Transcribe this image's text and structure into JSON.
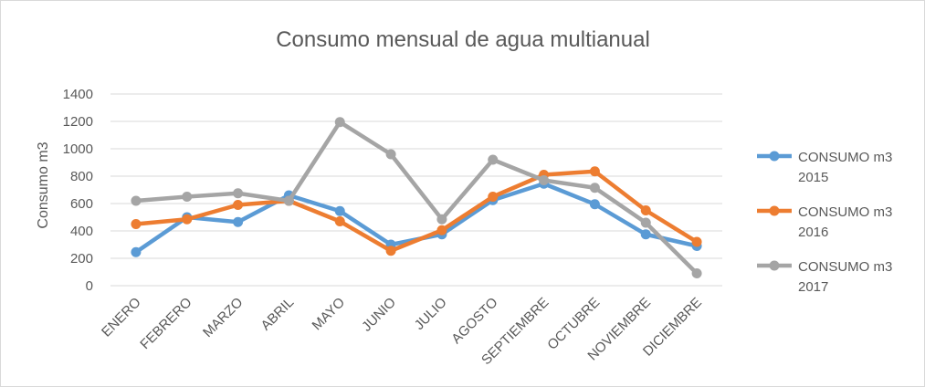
{
  "chart_data": {
    "type": "line",
    "title": "Consumo mensual de agua multianual",
    "xlabel": "",
    "ylabel": "Consumo m3",
    "ylim": [
      0,
      1400
    ],
    "yticks": [
      0,
      200,
      400,
      600,
      800,
      1000,
      1200,
      1400
    ],
    "grid": true,
    "legend_position": "right",
    "categories": [
      "ENERO",
      "FEBRERO",
      "MARZO",
      "ABRIL",
      "MAYO",
      "JUNIO",
      "JULIO",
      "AGOSTO",
      "SEPTIEMBRE",
      "OCTUBRE",
      "NOVIEMBRE",
      "DICIEMBRE"
    ],
    "series": [
      {
        "name": "CONSUMO m3 2015",
        "name_lines": [
          "CONSUMO m3",
          "2015"
        ],
        "color": "#5b9bd5",
        "values": [
          245,
          500,
          465,
          660,
          545,
          300,
          375,
          625,
          745,
          595,
          375,
          290
        ]
      },
      {
        "name": "CONSUMO m3 2016",
        "name_lines": [
          "CONSUMO m3",
          "2016"
        ],
        "color": "#ed7d31",
        "values": [
          450,
          485,
          590,
          620,
          470,
          255,
          405,
          650,
          810,
          835,
          550,
          320
        ]
      },
      {
        "name": "CONSUMO m3 2017",
        "name_lines": [
          "CONSUMO m3",
          "2017"
        ],
        "color": "#a5a5a5",
        "values": [
          620,
          650,
          675,
          620,
          1195,
          960,
          485,
          920,
          770,
          715,
          460,
          90
        ]
      }
    ]
  }
}
